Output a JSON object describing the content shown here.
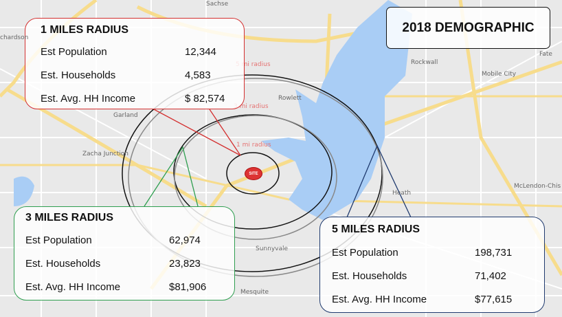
{
  "title": "2018 DEMOGRAPHIC",
  "site_label": "SITE",
  "radius_labels": [
    "5 mi radius",
    "3 mi radius",
    "1 mi radius"
  ],
  "places": [
    "Sachse",
    "chardson",
    "Garland",
    "Rowlett",
    "Zacha Junction",
    "Rockwall",
    "Mobile City",
    "Fate",
    "Heath",
    "McLendon-Chis",
    "Sunnyvale",
    "Mesquite"
  ],
  "colors": {
    "one_mile": "#d32f2f",
    "three_mile": "#2e9e4f",
    "five_mile": "#1f3a6e",
    "water": "#a9cdf5",
    "highway": "#f7dc8c"
  },
  "boxes": [
    {
      "heading": "1 MILES RADIUS",
      "rows": [
        {
          "label": "Est Population",
          "value": "12,344"
        },
        {
          "label": "Est. Households",
          "value": "4,583"
        },
        {
          "label": "Est. Avg. HH Income",
          "value": "$ 82,574"
        }
      ]
    },
    {
      "heading": "3 MILES RADIUS",
      "rows": [
        {
          "label": "Est Population",
          "value": "62,974"
        },
        {
          "label": "Est. Households",
          "value": "23,823"
        },
        {
          "label": "Est. Avg. HH Income",
          "value": "$81,906"
        }
      ]
    },
    {
      "heading": "5 MILES RADIUS",
      "rows": [
        {
          "label": "Est Population",
          "value": "198,731"
        },
        {
          "label": "Est. Households",
          "value": "71,402"
        },
        {
          "label": "Est. Avg. HH Income",
          "value": "$77,615"
        }
      ]
    }
  ]
}
